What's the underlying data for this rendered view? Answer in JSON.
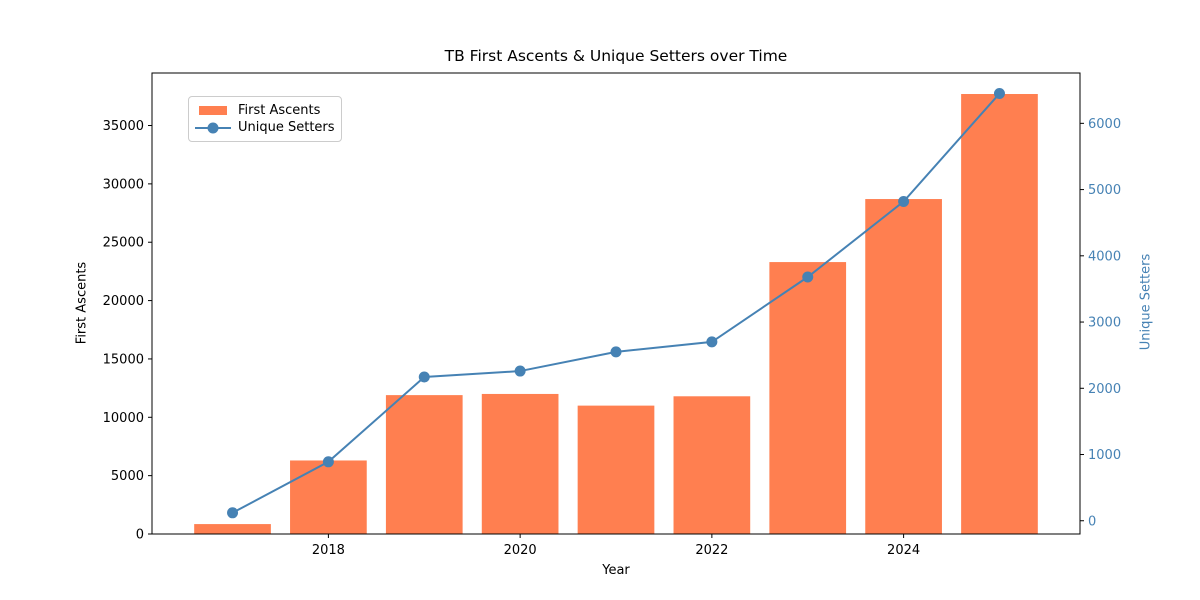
{
  "figure": {
    "background": "#ffffff"
  },
  "chart_data": {
    "type": "bar",
    "title": "TB First Ascents & Unique Setters over Time",
    "xlabel": "Year",
    "ylabel": "First Ascents",
    "ylabel_right": "Unique Setters",
    "categories": [
      2017,
      2018,
      2019,
      2020,
      2021,
      2022,
      2023,
      2024,
      2025
    ],
    "series": [
      {
        "name": "First Ascents",
        "kind": "bar",
        "axis": "left",
        "color": "#FF7F50",
        "values": [
          850,
          6300,
          11900,
          12000,
          11000,
          11800,
          23300,
          28700,
          37700
        ]
      },
      {
        "name": "Unique Setters",
        "kind": "line",
        "axis": "right",
        "color": "#4682B4",
        "marker": "circle",
        "values": [
          120,
          890,
          2170,
          2260,
          2550,
          2700,
          3680,
          4820,
          6450
        ]
      }
    ],
    "x_axis": {
      "min": 2016.16,
      "max": 2025.84,
      "ticks": [
        2018,
        2020,
        2022,
        2024
      ],
      "tick_color": "#000000"
    },
    "left_axis": {
      "min": 0,
      "max": 39500,
      "ticks": [
        0,
        5000,
        10000,
        15000,
        20000,
        25000,
        30000,
        35000
      ],
      "label_color": "#000000"
    },
    "right_axis": {
      "min": -200,
      "max": 6760,
      "ticks": [
        0,
        1000,
        2000,
        3000,
        4000,
        5000,
        6000
      ],
      "label_color": "#4682B4"
    },
    "legend": {
      "position": "upper left",
      "items": [
        "First Ascents",
        "Unique Setters"
      ]
    },
    "grid": false,
    "bar_width": 0.8
  }
}
